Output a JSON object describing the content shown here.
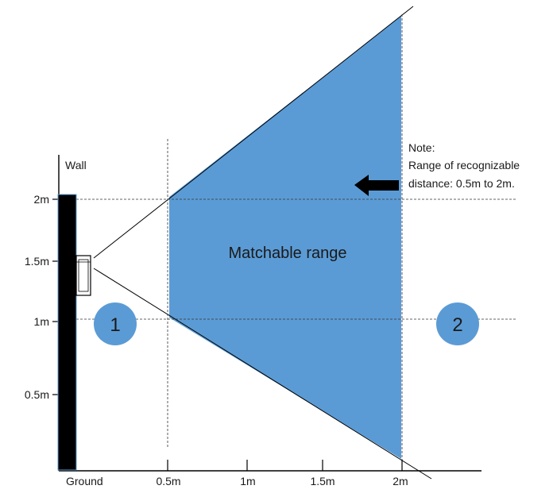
{
  "labels": {
    "wall": "Wall",
    "ground": "Ground",
    "region": "Matchable range",
    "note_line1": "Note:",
    "note_line2": "Range of recognizable",
    "note_line3": "distance: 0.5m to 2m."
  },
  "y_axis_ticks": [
    "2m",
    "1.5m",
    "1m",
    "0.5m"
  ],
  "x_axis_ticks": [
    "0.5m",
    "1m",
    "1.5m",
    "2m"
  ],
  "markers": [
    "1",
    "2"
  ],
  "colors": {
    "range_fill": "#5b9bd5",
    "marker_fill": "#5b9bd5",
    "wall_fill": "#000000",
    "line": "#000000"
  },
  "icons": {
    "arrow": "left-arrow-icon",
    "device": "face-recognition-device-icon"
  }
}
